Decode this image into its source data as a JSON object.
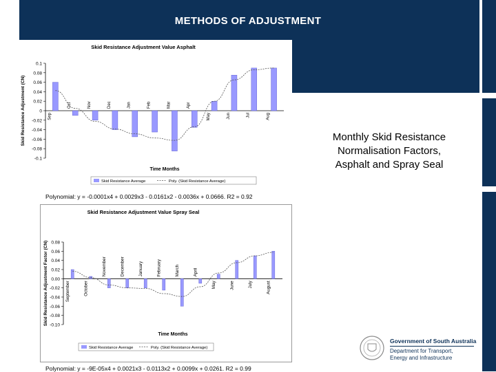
{
  "slide": {
    "title": "METHODS OF ADJUSTMENT",
    "caption_lines": [
      "Monthly Skid Resistance",
      "Normalisation Factors,",
      "Asphalt and Spray Seal"
    ],
    "logo": {
      "line1": "Government of South Australia",
      "line2": "Department for Transport,",
      "line3": "Energy and Infrastructure"
    },
    "colors": {
      "header": "#0d3158",
      "bar": "#9999ff"
    }
  },
  "chart_data": [
    {
      "type": "bar",
      "title": "Skid Resistance Adjustment Value Asphalt",
      "xlabel": "Time Months",
      "ylabel": "Skid Resistance Adjustment (CN)",
      "categories": [
        "Sep",
        "Oct",
        "Nov",
        "Dec",
        "Jan",
        "Feb",
        "Mar",
        "Apr",
        "May",
        "Jun",
        "Jul",
        "Aug"
      ],
      "series": [
        {
          "name": "Skid Resistance Average",
          "values": [
            0.06,
            -0.01,
            -0.02,
            -0.04,
            -0.055,
            -0.045,
            -0.085,
            -0.035,
            0.02,
            0.075,
            0.09,
            0.09
          ]
        },
        {
          "name": "Poly. (Skid Resistance Average)",
          "type": "trendline"
        }
      ],
      "ylim": [
        -0.1,
        0.1
      ],
      "yticks": [
        "0.1",
        "0.08",
        "0.06",
        "0.04",
        "0.02",
        "0",
        "-0.02",
        "-0.04",
        "-0.06",
        "-0.08",
        "-0.1"
      ],
      "legend_position": "bottom",
      "grid": false,
      "equation": "Polynomial: y = -0.0001x4 + 0.0029x3 - 0.0161x2 - 0.0036x + 0.0666. R2 = 0.92"
    },
    {
      "type": "bar",
      "title": "Skid Resistance Adjustment Value Spray Seal",
      "xlabel": "Time Months",
      "ylabel": "Skid Resistance Adjustment Factor (CN)",
      "categories": [
        "September",
        "October",
        "November",
        "December",
        "January",
        "February",
        "March",
        "April",
        "May",
        "June",
        "July",
        "August"
      ],
      "series": [
        {
          "name": "Skid Resistance Average",
          "values": [
            0.02,
            0.005,
            -0.02,
            -0.02,
            -0.02,
            -0.025,
            -0.06,
            -0.01,
            0.01,
            0.04,
            0.05,
            0.06
          ]
        },
        {
          "name": "Poly. (Skid Resistance Average)",
          "type": "trendline"
        }
      ],
      "ylim": [
        -0.1,
        0.08
      ],
      "yticks": [
        "0.08",
        "0.06",
        "0.04",
        "0.02",
        "0.00",
        "-0.02",
        "-0.04",
        "-0.06",
        "-0.08",
        "-0.10"
      ],
      "legend_position": "bottom",
      "grid": false,
      "equation": "Polynomial: y = -9E-05x4 + 0.0021x3 - 0.0113x2 + 0.0099x + 0.0261. R2 = 0.99"
    }
  ]
}
